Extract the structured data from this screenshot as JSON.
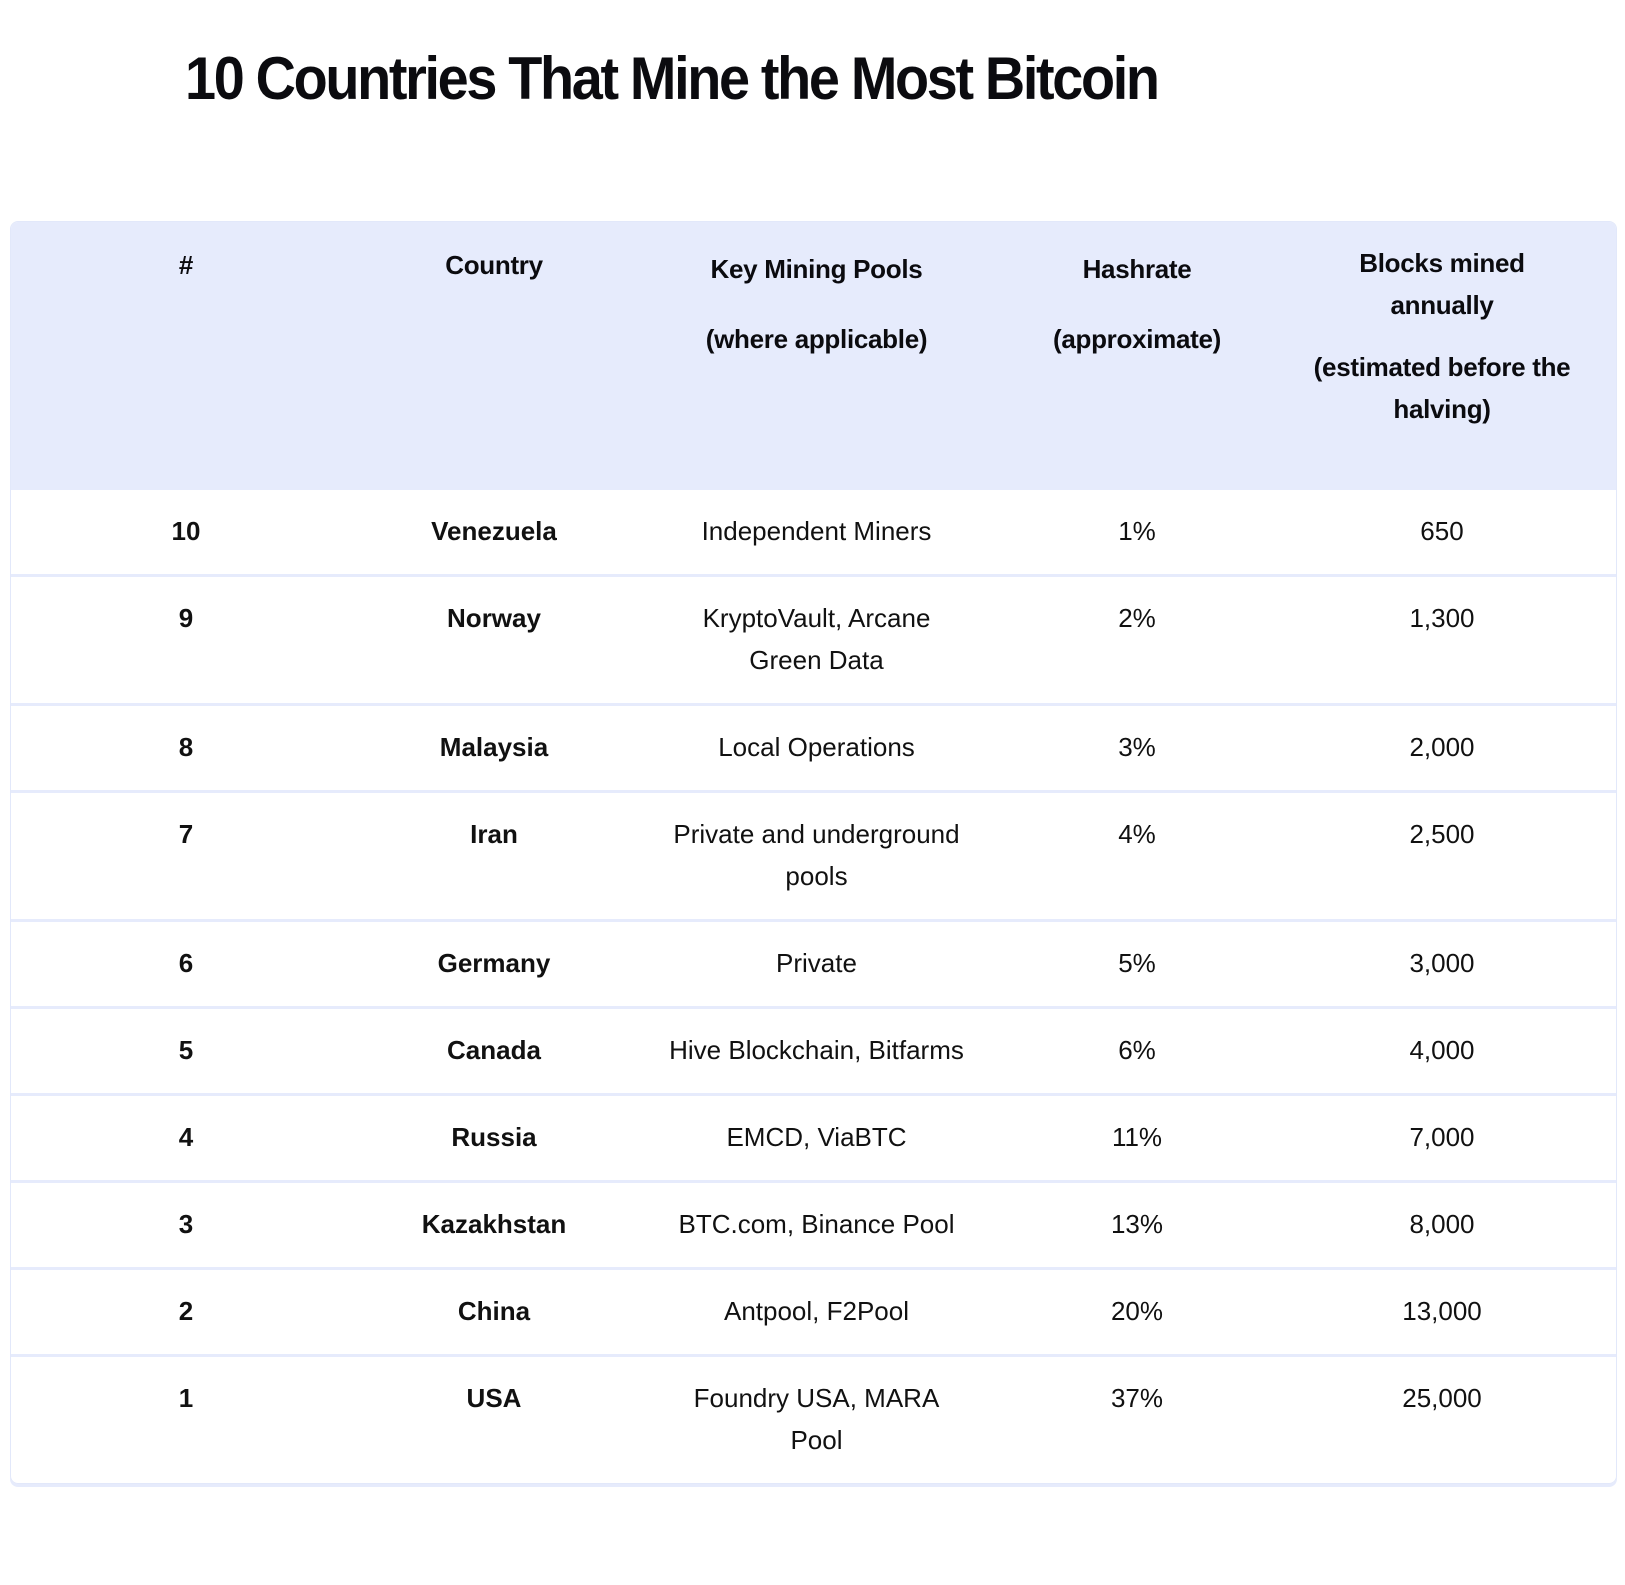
{
  "page": {
    "title": "10 Countries That Mine the Most Bitcoin"
  },
  "table": {
    "columns": [
      {
        "key": "rank",
        "label": "#",
        "sublabel": ""
      },
      {
        "key": "country",
        "label": "Country",
        "sublabel": ""
      },
      {
        "key": "pools",
        "label": "Key Mining Pools",
        "sublabel": "(where applicable)"
      },
      {
        "key": "hashrate",
        "label": "Hashrate",
        "sublabel": "(approximate)"
      },
      {
        "key": "blocks",
        "label": "Blocks mined annually",
        "sublabel": "(estimated before the halving)"
      }
    ],
    "rows": [
      {
        "rank": "10",
        "country": "Venezuela",
        "pools": "Independent Miners",
        "hashrate": "1%",
        "blocks": "650"
      },
      {
        "rank": "9",
        "country": "Norway",
        "pools": "KryptoVault, Arcane Green Data",
        "hashrate": "2%",
        "blocks": "1,300"
      },
      {
        "rank": "8",
        "country": "Malaysia",
        "pools": "Local Operations",
        "hashrate": "3%",
        "blocks": "2,000"
      },
      {
        "rank": "7",
        "country": "Iran",
        "pools": "Private and underground pools",
        "hashrate": "4%",
        "blocks": "2,500"
      },
      {
        "rank": "6",
        "country": "Germany",
        "pools": "Private",
        "hashrate": "5%",
        "blocks": "3,000"
      },
      {
        "rank": "5",
        "country": "Canada",
        "pools": "Hive Blockchain, Bitfarms",
        "hashrate": "6%",
        "blocks": "4,000"
      },
      {
        "rank": "4",
        "country": "Russia",
        "pools": "EMCD, ViaBTC",
        "hashrate": "11%",
        "blocks": "7,000"
      },
      {
        "rank": "3",
        "country": "Kazakhstan",
        "pools": "BTC.com, Binance Pool",
        "hashrate": "13%",
        "blocks": "8,000"
      },
      {
        "rank": "2",
        "country": "China",
        "pools": "Antpool, F2Pool",
        "hashrate": "20%",
        "blocks": "13,000"
      },
      {
        "rank": "1",
        "country": "USA",
        "pools": "Foundry USA, MARA Pool",
        "hashrate": "37%",
        "blocks": "25,000"
      }
    ]
  },
  "colors": {
    "header_bg": "#e6ebfc",
    "row_divider": "#e6ebfc",
    "text": "#0b0b0f"
  }
}
